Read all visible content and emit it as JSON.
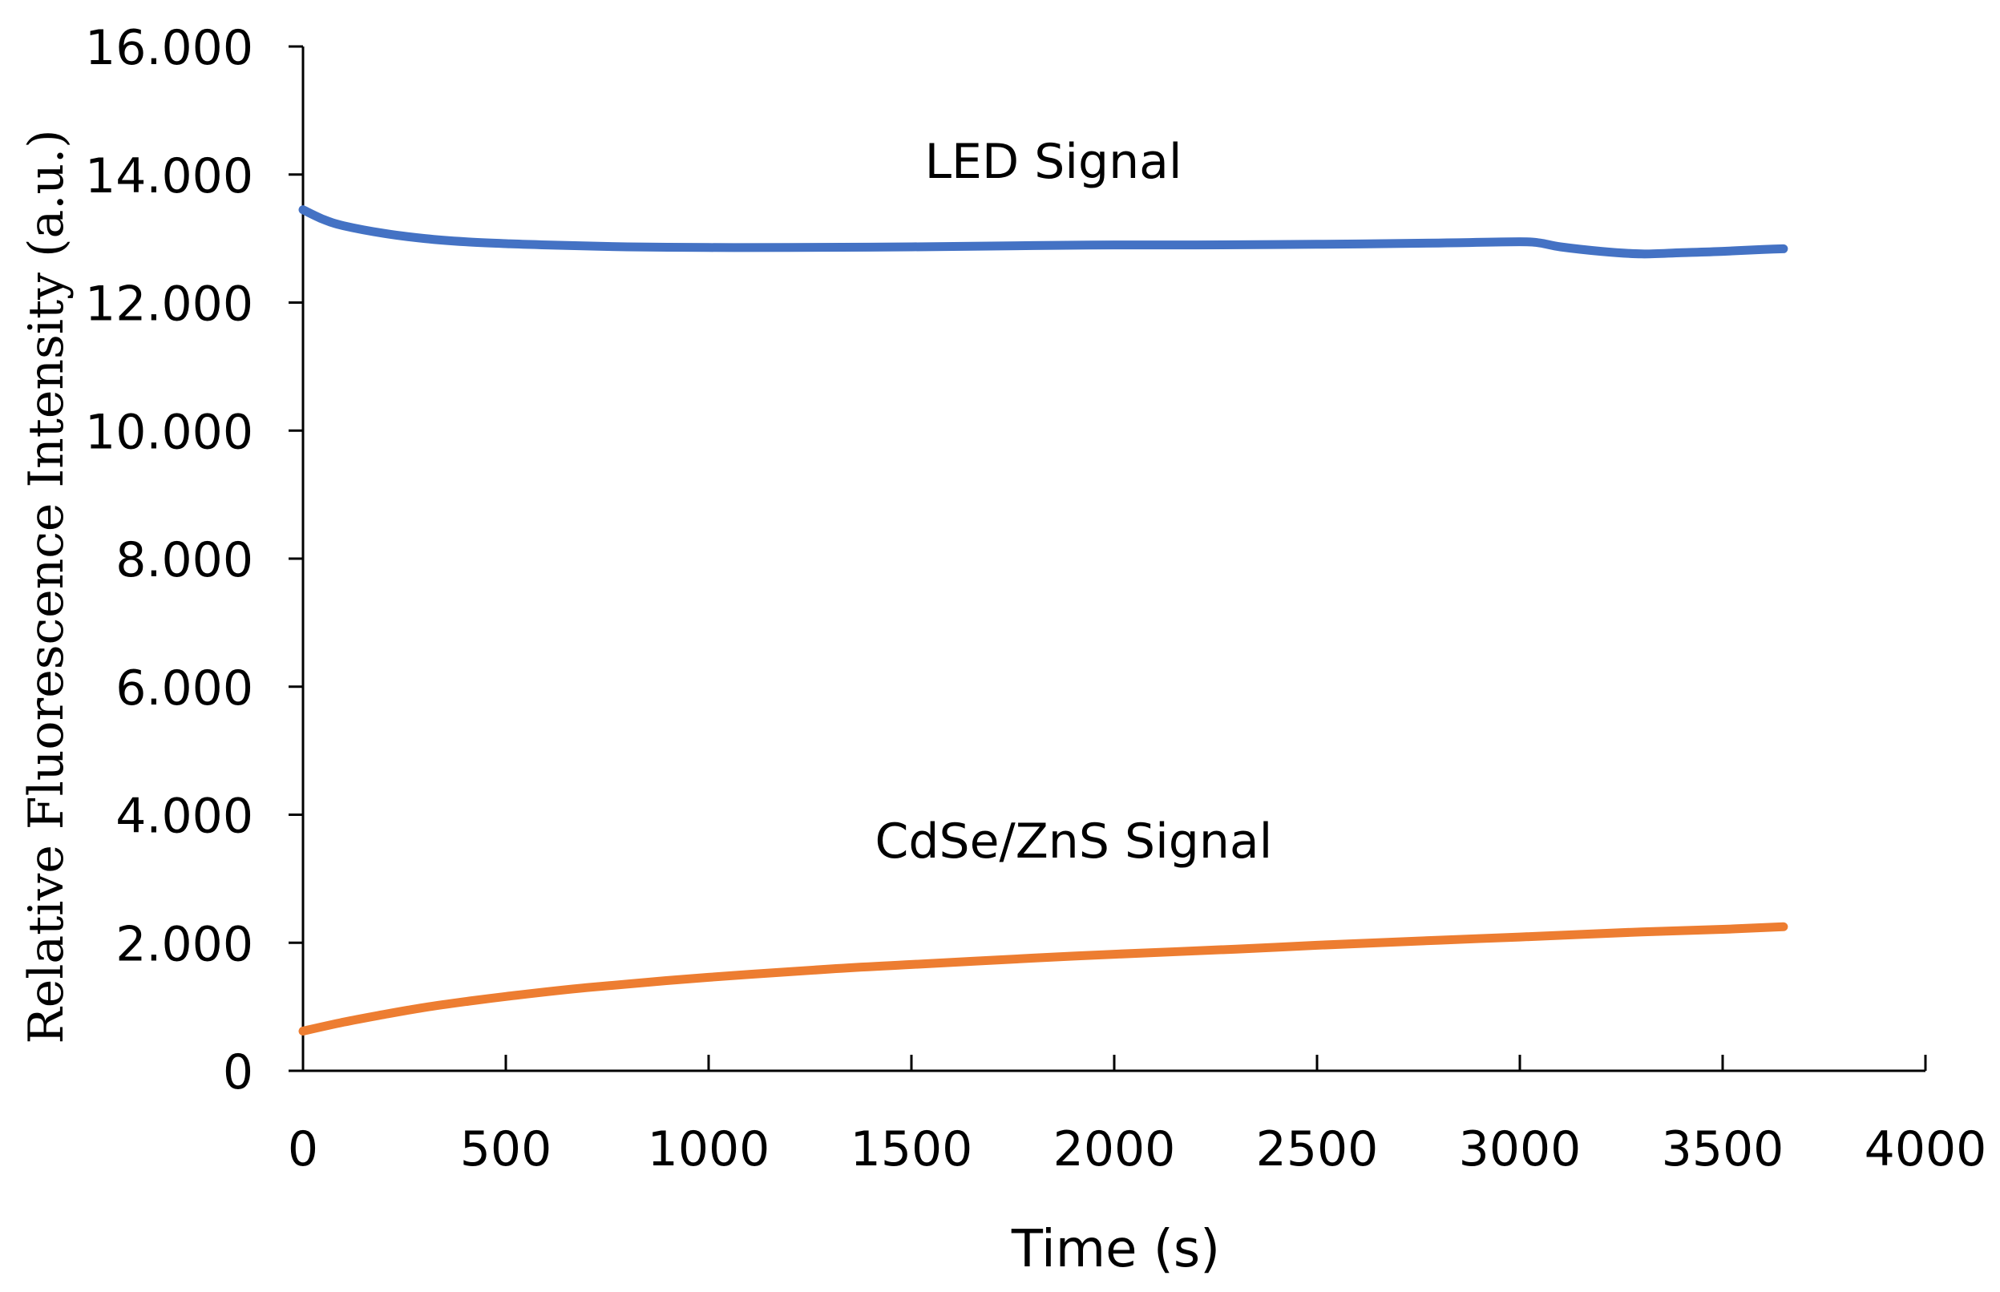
{
  "chart_data": {
    "type": "line",
    "title": "",
    "xlabel": "Time (s)",
    "ylabel": "Relative  Fluorescence  Intensity  (a.u.)",
    "xlim": [
      0,
      4000
    ],
    "ylim": [
      0,
      16000
    ],
    "x_ticks": [
      0,
      500,
      1000,
      1500,
      2000,
      2500,
      3000,
      3500,
      4000
    ],
    "x_tick_labels": [
      "0",
      "500",
      "1000",
      "1500",
      "2000",
      "2500",
      "3000",
      "3500",
      "4000"
    ],
    "y_ticks": [
      0,
      2000,
      4000,
      6000,
      8000,
      10000,
      12000,
      14000,
      16000
    ],
    "y_tick_labels": [
      "0",
      "2.000",
      "4.000",
      "6.000",
      "8.000",
      "10.000",
      "12.000",
      "14.000",
      "16.000"
    ],
    "grid": false,
    "series": [
      {
        "name": "LED Signal",
        "color": "#4472C4",
        "x": [
          0,
          50,
          100,
          200,
          300,
          400,
          500,
          600,
          800,
          1000,
          1200,
          1500,
          1800,
          2000,
          2200,
          2500,
          2800,
          3000,
          3050,
          3100,
          3200,
          3300,
          3400,
          3500,
          3600,
          3650
        ],
        "y": [
          13450,
          13300,
          13200,
          13080,
          13000,
          12950,
          12920,
          12900,
          12870,
          12860,
          12860,
          12870,
          12890,
          12900,
          12900,
          12910,
          12930,
          12950,
          12930,
          12870,
          12800,
          12760,
          12780,
          12800,
          12830,
          12840
        ]
      },
      {
        "name": "CdSe/ZnS Signal",
        "color": "#ED7D31",
        "x": [
          0,
          100,
          200,
          300,
          400,
          500,
          700,
          1000,
          1300,
          1500,
          1800,
          2000,
          2300,
          2500,
          2800,
          3000,
          3300,
          3500,
          3650
        ],
        "y": [
          620,
          760,
          880,
          990,
          1080,
          1160,
          1300,
          1460,
          1590,
          1660,
          1760,
          1820,
          1900,
          1960,
          2040,
          2090,
          2170,
          2210,
          2250
        ]
      }
    ],
    "annotations": [
      {
        "text": "LED Signal",
        "x": 1850,
        "y": 14200
      },
      {
        "text": "CdSe/ZnS Signal",
        "x": 1900,
        "y": 3580
      }
    ]
  }
}
